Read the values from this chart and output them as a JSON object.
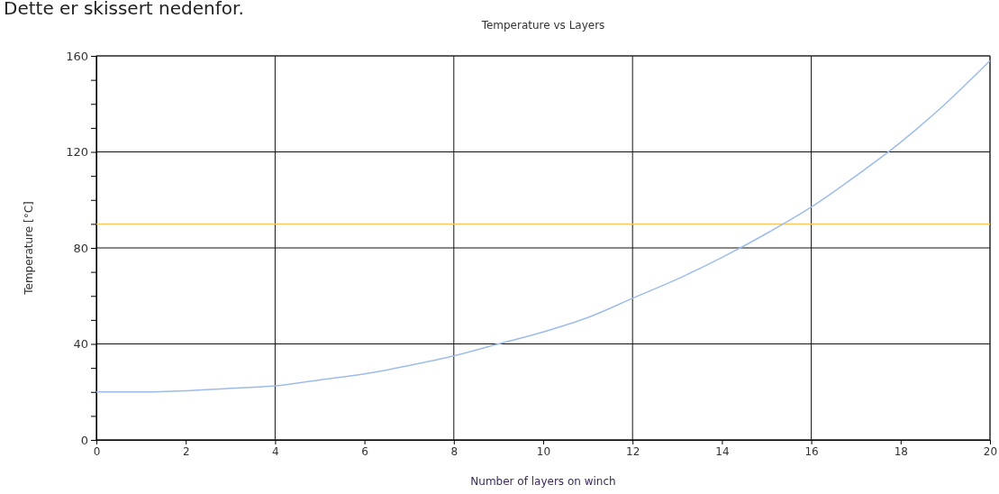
{
  "chart_data": {
    "type": "line",
    "title": "Temperature vs Layers",
    "xlabel": "Number of layers on winch",
    "ylabel": "Temperature [°C]",
    "annotations": [
      "Dette er skissert nedenfor."
    ],
    "x": [
      0,
      1,
      2,
      3,
      4,
      5,
      6,
      7,
      8,
      9,
      10,
      11,
      12,
      13,
      14,
      15,
      16,
      17,
      18,
      19,
      20
    ],
    "series": [
      {
        "color": "#9dbcea",
        "values": [
          20,
          20,
          20.5,
          21.5,
          22.5,
          25,
          27.5,
          31,
          35,
          40,
          45,
          51,
          59,
          67,
          76,
          86,
          97,
          110,
          124,
          140,
          158
        ]
      }
    ],
    "xlim": [
      0,
      20
    ],
    "xticks": [
      0,
      2,
      4,
      6,
      8,
      10,
      12,
      14,
      16,
      18,
      20
    ],
    "ylim": [
      0,
      160
    ],
    "yticks": [
      0,
      {
        "value": 10,
        "label": null
      },
      {
        "value": 20,
        "label": null
      },
      {
        "value": 30,
        "label": null
      },
      40,
      {
        "value": 50,
        "label": null
      },
      {
        "value": 60,
        "label": null
      },
      {
        "value": 70,
        "label": null
      },
      80,
      {
        "value": 90,
        "label": null
      },
      {
        "value": 100,
        "label": null
      },
      {
        "value": 110,
        "label": null
      },
      120,
      {
        "value": 130,
        "label": null
      },
      {
        "value": 140,
        "label": null
      },
      {
        "value": 150,
        "label": null
      },
      160
    ],
    "ref_lines": [
      {
        "axis": "y",
        "value": 90,
        "color": "#f7c85a"
      }
    ],
    "grid": true,
    "marker": "none",
    "line_style": "solid"
  }
}
